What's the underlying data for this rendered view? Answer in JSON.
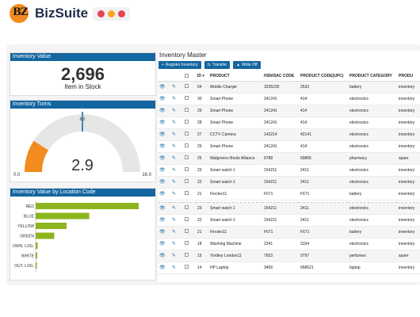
{
  "brand": {
    "logo_letters": "BZ",
    "name": "BizSuite",
    "dot_colors": [
      "#e8405a",
      "#f5a623",
      "#e8405a"
    ]
  },
  "inventory_value": {
    "title": "Inventory Value",
    "value": "2,696",
    "subtitle": "Item in Stock"
  },
  "inventory_turns": {
    "title": "Inventory Turns",
    "min_label": "0.0",
    "max_label": "16.0",
    "marker_label": "8.0",
    "value_label": "2.9",
    "chart_data": {
      "type": "gauge",
      "min": 0,
      "max": 16,
      "value": 2.9,
      "marker": 8
    }
  },
  "location_chart": {
    "title": "Inventory Value by Location Code",
    "chart_data": {
      "type": "bar",
      "orientation": "horizontal",
      "categories": [
        "RED",
        "BLUE",
        "YELLOW",
        "GREEN",
        "OWN. LOG.",
        "WHITE",
        "OUT. LOG."
      ],
      "values": [
        100,
        52,
        30,
        18,
        2,
        1.5,
        1
      ],
      "color": "#8db51e"
    }
  },
  "master": {
    "title": "Inventory Master",
    "buttons": [
      {
        "icon": "+",
        "label": "Register Inventory"
      },
      {
        "icon": "⇆",
        "label": "Transfer"
      },
      {
        "icon": "▲",
        "label": "Write Off"
      }
    ],
    "columns": [
      "ID",
      "PRODUCT",
      "HSN/SAC CODE",
      "PRODUCT CODE(UPC)",
      "PRODUCT CATEGORY",
      "PRODU"
    ],
    "rows": [
      [
        "64",
        "Mobile Charger",
        "3235235",
        "2532",
        "battery",
        "inventory"
      ],
      [
        "30",
        "Smart Phone",
        "241241",
        "414",
        "electronics",
        "inventory"
      ],
      [
        "29",
        "Smart Phone",
        "241241",
        "414",
        "electronics",
        "inventory"
      ],
      [
        "28",
        "Smart Phone",
        "241241",
        "414",
        "electronics",
        "inventory"
      ],
      [
        "27",
        "CCTV Camera",
        "143214",
        "42141",
        "electronics",
        "inventory"
      ],
      [
        "26",
        "Smart Phone",
        "241241",
        "414",
        "electronics",
        "inventory"
      ],
      [
        "25",
        "Walgreens Boots Alliance",
        "6788",
        "69865",
        "pharmacy",
        "spare"
      ],
      [
        "23",
        "Smart watch 1",
        "154211",
        "2411",
        "electronics",
        "inventory"
      ],
      [
        "22",
        "Smart watch 1",
        "154211",
        "2411",
        "electronics",
        "inventory"
      ],
      [
        "21",
        "Finolex11",
        "F671",
        "F671",
        "battery",
        "inventory"
      ],
      [
        "23",
        "Smart watch 1",
        "154211",
        "2411",
        "electronics",
        "inventory"
      ],
      [
        "22",
        "Smart watch 1",
        "154211",
        "2411",
        "electronics",
        "inventory"
      ],
      [
        "21",
        "Finolex11",
        "F671",
        "F671",
        "battery",
        "inventory"
      ],
      [
        "18",
        "Washing Machine",
        "2341",
        "3154",
        "electronics",
        "inventory"
      ],
      [
        "15",
        "Yordley London11",
        "7653",
        "9797",
        "perfumes",
        "spare"
      ],
      [
        "14",
        "HP Laptop",
        "3456",
        "658621",
        "laptop",
        "inventory"
      ]
    ]
  }
}
